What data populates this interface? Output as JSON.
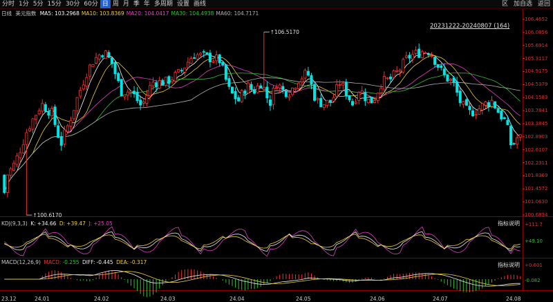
{
  "toolbar": {
    "periods": [
      "分时",
      "1分",
      "5分",
      "15分",
      "30分",
      "60分",
      "日",
      "周",
      "月",
      "季",
      "年",
      "多周期",
      "设置",
      "画线"
    ],
    "active_index": 6,
    "right_icon": "区",
    "add_watch": "加自选",
    "back": "返回"
  },
  "main": {
    "period_label": "日线",
    "name": "美元指数",
    "ma": [
      {
        "label": "MA5:",
        "value": "103.2968",
        "color": "#ffffff"
      },
      {
        "label": "MA10:",
        "value": "103.8369",
        "color": "#f0d030"
      },
      {
        "label": "MA20:",
        "value": "104.0417",
        "color": "#e040c0"
      },
      {
        "label": "MA30:",
        "value": "104.4938",
        "color": "#30c030"
      },
      {
        "label": "MA60:",
        "value": "104.7171",
        "color": "#b0b0b0"
      }
    ],
    "range_label": "20231222-20240807 (164)",
    "high_label": "106.5170",
    "low_label": "100.6170",
    "y_ticks": [
      "106.4652",
      "106.0856",
      "105.6914",
      "105.3117",
      "104.9175",
      "104.5379",
      "104.1583",
      "103.7841",
      "103.3845",
      "102.8903",
      "102.6107",
      "102.2311",
      "101.8369",
      "101.4572",
      "101.0630",
      "100.6834"
    ],
    "y_min": 100.62,
    "y_max": 106.7
  },
  "kdj": {
    "title": "KDJ(9,3,3)",
    "k": {
      "label": "K:",
      "value": "+34.66",
      "color": "#f0f0f0"
    },
    "d": {
      "label": "D:",
      "value": "+39.47",
      "color": "#f0d030"
    },
    "j": {
      "label": "J:",
      "value": "+25.05",
      "color": "#e040c0"
    },
    "btn": "指标说明",
    "y_ticks": [
      "+111.7",
      "+49.10"
    ]
  },
  "macd": {
    "title": "MACD(12,26,9)",
    "macd": {
      "label": "MACD:",
      "value": "-0.255",
      "color": "#e03030"
    },
    "diff": {
      "label": "DIFF:",
      "value": "-0.445",
      "color": "#f0f0f0"
    },
    "dea": {
      "label": "DEA:",
      "value": "-0.317",
      "color": "#f0d030"
    },
    "btn": "指标说明",
    "y_ticks": [
      "+0.601",
      "-0.082"
    ]
  },
  "x_labels": [
    "23.12",
    "24.01",
    "24.02",
    "24.03",
    "24.04",
    "24.05",
    "24.06",
    "24.07",
    "24.08"
  ],
  "colors": {
    "up": "#ff3030",
    "down": "#00e5e5",
    "axis": "#8a0000"
  }
}
